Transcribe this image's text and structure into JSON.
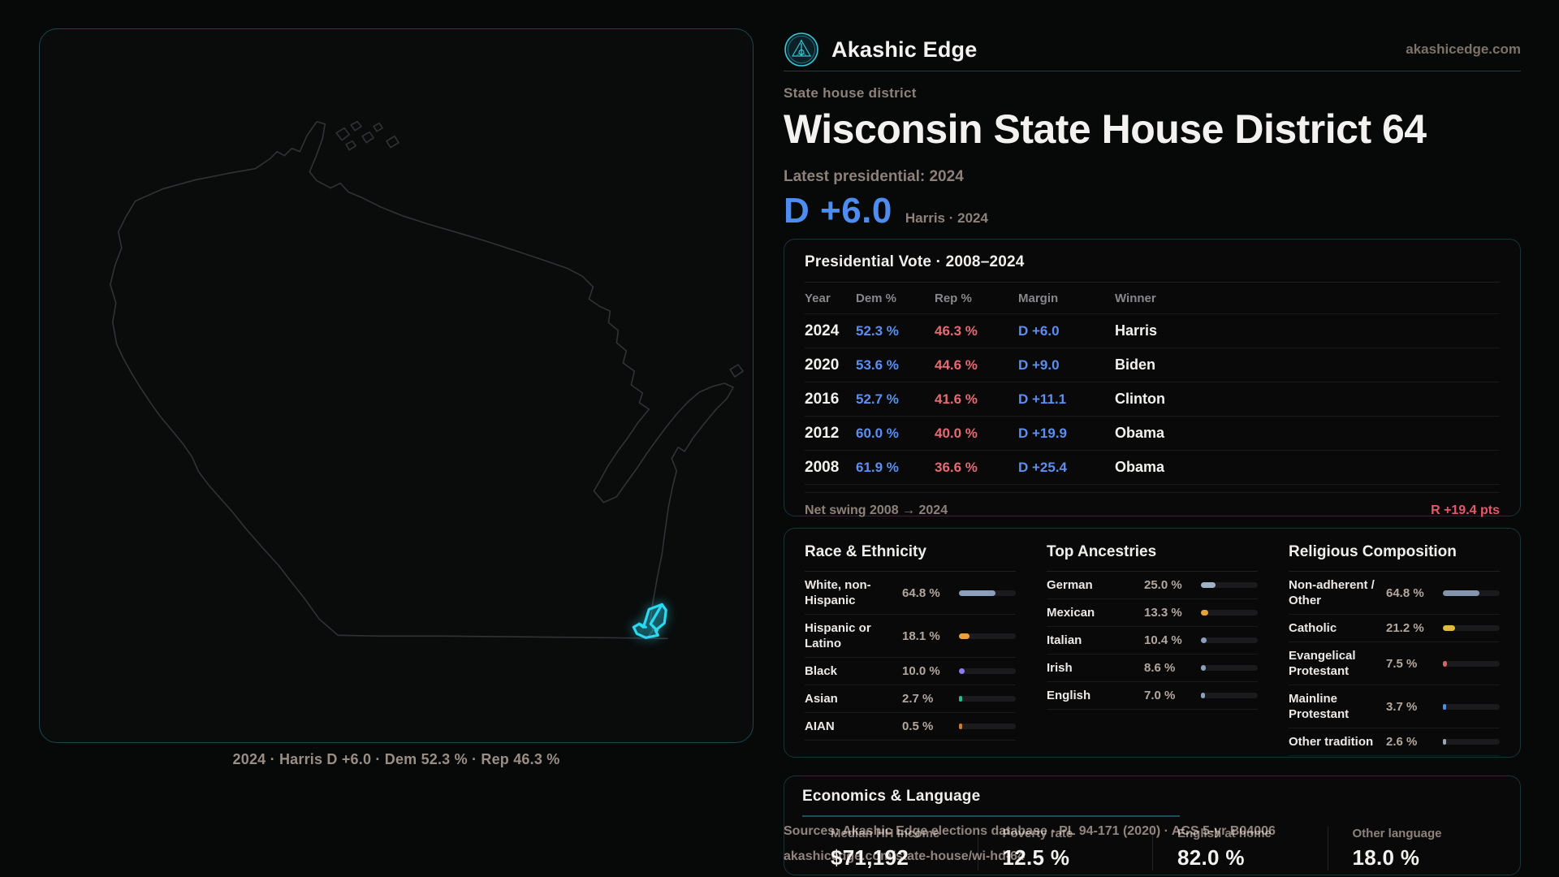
{
  "brand": {
    "name": "Akashic Edge",
    "domain": "akashicedge.com"
  },
  "header": {
    "kicker": "State house district",
    "title": "Wisconsin State House District 64",
    "latest_label": "Latest presidential: 2024",
    "headline_margin": "D +6.0",
    "headline_context": "Harris · 2024"
  },
  "map": {
    "caption": "2024 · Harris D +6.0 · Dem 52.3 % · Rep 46.3 %"
  },
  "presidential_table": {
    "title": "Presidential Vote · 2008–2024",
    "columns": [
      "Year",
      "Dem %",
      "Rep %",
      "Margin",
      "Winner"
    ],
    "rows": [
      [
        "2024",
        "52.3 %",
        "46.3 %",
        "D +6.0",
        "Harris"
      ],
      [
        "2020",
        "53.6 %",
        "44.6 %",
        "D +9.0",
        "Biden"
      ],
      [
        "2016",
        "52.7 %",
        "41.6 %",
        "D +11.1",
        "Clinton"
      ],
      [
        "2012",
        "60.0 %",
        "40.0 %",
        "D +19.9",
        "Obama"
      ],
      [
        "2008",
        "61.9 %",
        "36.6 %",
        "D +25.4",
        "Obama"
      ]
    ],
    "net_swing_label": "Net swing 2008 → 2024",
    "net_swing_value": "R +19.4 pts"
  },
  "demographics": {
    "columns": [
      {
        "title": "Race & Ethnicity",
        "rows": [
          {
            "label": "White, non-Hispanic",
            "value": "64.8 %",
            "pct": 64.8,
            "color": "#8da0bb"
          },
          {
            "label": "Hispanic or Latino",
            "value": "18.1 %",
            "pct": 18.1,
            "color": "#e6a23c"
          },
          {
            "label": "Black",
            "value": "10.0 %",
            "pct": 10.0,
            "color": "#8f7bee"
          },
          {
            "label": "Asian",
            "value": "2.7 %",
            "pct": 2.7,
            "color": "#27bd8d"
          },
          {
            "label": "AIAN",
            "value": "0.5 %",
            "pct": 0.5,
            "color": "#cf7b28"
          }
        ]
      },
      {
        "title": "Top Ancestries",
        "rows": [
          {
            "label": "German",
            "value": "25.0 %",
            "pct": 25.0,
            "color": "#9fb2c8"
          },
          {
            "label": "Mexican",
            "value": "13.3 %",
            "pct": 13.3,
            "color": "#e6a23c"
          },
          {
            "label": "Italian",
            "value": "10.4 %",
            "pct": 10.4,
            "color": "#8da0bb"
          },
          {
            "label": "Irish",
            "value": "8.6 %",
            "pct": 8.6,
            "color": "#8da0bb"
          },
          {
            "label": "English",
            "value": "7.0 %",
            "pct": 7.0,
            "color": "#8da0bb"
          }
        ]
      },
      {
        "title": "Religious Composition",
        "rows": [
          {
            "label": "Non-adherent / Other",
            "value": "64.8 %",
            "pct": 64.8,
            "color": "#8494ad"
          },
          {
            "label": "Catholic",
            "value": "21.2 %",
            "pct": 21.2,
            "color": "#e3b93e"
          },
          {
            "label": "Evangelical Protestant",
            "value": "7.5 %",
            "pct": 7.5,
            "color": "#dd5f6b"
          },
          {
            "label": "Mainline Protestant",
            "value": "3.7 %",
            "pct": 3.7,
            "color": "#4f8cf0"
          },
          {
            "label": "Other tradition",
            "value": "2.6 %",
            "pct": 2.6,
            "color": "#9aa7b4"
          }
        ]
      }
    ]
  },
  "economics": {
    "title": "Economics & Language",
    "stats": [
      {
        "label": "Median HH Income",
        "value": "$71,192"
      },
      {
        "label": "Poverty rate",
        "value": "12.5 %"
      },
      {
        "label": "English at home",
        "value": "82.0 %"
      },
      {
        "label": "Other language",
        "value": "18.0 %"
      }
    ]
  },
  "sources": {
    "line1": "Sources: Akashic Edge elections database · PL 94-171 (2020) · ACS 5-yr B04006",
    "line2": "akashicedge.com/state-house/wi-hd-64"
  },
  "colors": {
    "accent_cyan": "#2bd9f2",
    "dem_blue": "#5b8ff2",
    "rep_red": "#e76a72",
    "card_border": "#16343c",
    "muted_text": "#8d8179"
  }
}
